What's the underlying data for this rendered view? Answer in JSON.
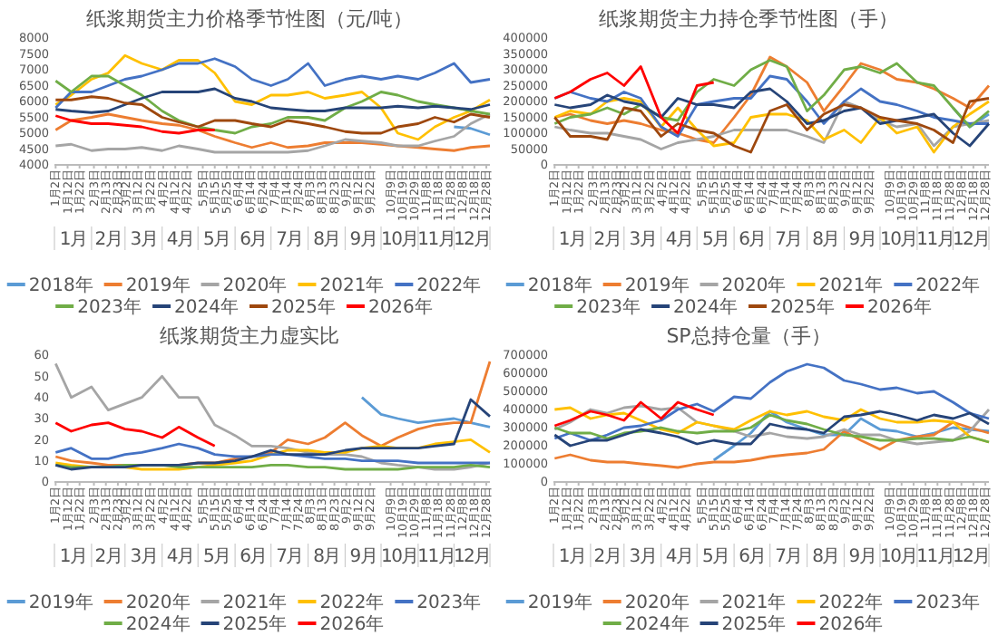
{
  "chart_data": [
    {
      "type": "line",
      "title": "纸浆期货主力价格季节性图（元/吨）",
      "x": [
        "--01-02",
        "--01-15",
        "--02-01",
        "--02-15",
        "--03-01",
        "--03-15",
        "--04-01",
        "--04-15",
        "--05-01",
        "--05-15",
        "--06-01",
        "--06-15",
        "--07-01",
        "--07-15",
        "--08-01",
        "--08-15",
        "--09-01",
        "--09-15",
        "--10-01",
        "--10-15",
        "--11-01",
        "--11-15",
        "--12-01",
        "--12-15",
        "--12-31"
      ],
      "xlim": [
        "--01-01",
        "--12-31"
      ],
      "xticks": [
        {
          "value": "--01-02",
          "label": "1月2日"
        },
        {
          "value": "--01-12",
          "label": "1月12日"
        },
        {
          "value": "--01-22",
          "label": "1月22日"
        },
        {
          "value": "--02-03",
          "label": "2月3日"
        },
        {
          "value": "--02-13",
          "label": "2月13日"
        },
        {
          "value": "--02-23",
          "label": "2月23日"
        },
        {
          "value": "--03-02",
          "label": "3月2日"
        },
        {
          "value": "--03-12",
          "label": "3月12日"
        },
        {
          "value": "--03-22",
          "label": "3月22日"
        },
        {
          "value": "--04-02",
          "label": "4月2日"
        },
        {
          "value": "--04-12",
          "label": "4月12日"
        },
        {
          "value": "--04-22",
          "label": "4月22日"
        },
        {
          "value": "--05-05",
          "label": "5月5日"
        },
        {
          "value": "--05-15",
          "label": "5月15日"
        },
        {
          "value": "--05-25",
          "label": "5月25日"
        },
        {
          "value": "--06-04",
          "label": "6月4日"
        },
        {
          "value": "--06-14",
          "label": "6月14日"
        },
        {
          "value": "--06-24",
          "label": "6月24日"
        },
        {
          "value": "--07-04",
          "label": "7月4日"
        },
        {
          "value": "--07-14",
          "label": "7月14日"
        },
        {
          "value": "--07-24",
          "label": "7月24日"
        },
        {
          "value": "--08-03",
          "label": "8月3日"
        },
        {
          "value": "--08-13",
          "label": "8月13日"
        },
        {
          "value": "--08-23",
          "label": "8月23日"
        },
        {
          "value": "--09-02",
          "label": "9月2日"
        },
        {
          "value": "--09-12",
          "label": "9月12日"
        },
        {
          "value": "--09-22",
          "label": "9月22日"
        },
        {
          "value": "--10-09",
          "label": "10月9日"
        },
        {
          "value": "--10-19",
          "label": "10月19日"
        },
        {
          "value": "--10-29",
          "label": "10月29日"
        },
        {
          "value": "--11-08",
          "label": "11月8日"
        },
        {
          "value": "--11-18",
          "label": "11月18日"
        },
        {
          "value": "--11-28",
          "label": "11月28日"
        },
        {
          "value": "--12-08",
          "label": "12月8日"
        },
        {
          "value": "--12-18",
          "label": "12月18日"
        },
        {
          "value": "--12-28",
          "label": "12月28日"
        }
      ],
      "annotations": [
        "1月",
        "2月",
        "3月",
        "4月",
        "5月",
        "6月",
        "7月",
        "8月",
        "9月",
        "10月",
        "11月",
        "12月"
      ],
      "ylim": [
        4000,
        8000
      ],
      "yticks": [
        4000,
        4500,
        5000,
        5500,
        6000,
        6500,
        7000,
        7500,
        8000
      ],
      "grid": false,
      "legend": "bottom",
      "series": [
        {
          "name": "2018年",
          "color": "#5b9bd5",
          "values": [
            null,
            null,
            null,
            null,
            null,
            null,
            null,
            null,
            null,
            null,
            null,
            null,
            null,
            null,
            null,
            null,
            null,
            null,
            null,
            null,
            null,
            null,
            5200,
            5150,
            4950
          ]
        },
        {
          "name": "2019年",
          "color": "#ed7d31",
          "values": [
            5100,
            5400,
            5500,
            5600,
            5500,
            5400,
            5300,
            5250,
            5100,
            4900,
            4700,
            4550,
            4700,
            4550,
            4600,
            4700,
            4700,
            4700,
            4650,
            4600,
            4550,
            4500,
            4450,
            4550,
            4600
          ]
        },
        {
          "name": "2020年",
          "color": "#a5a5a5",
          "values": [
            4600,
            4650,
            4450,
            4500,
            4500,
            4550,
            4450,
            4600,
            4500,
            4400,
            4400,
            4400,
            4400,
            4400,
            4450,
            4600,
            4800,
            4750,
            4700,
            4600,
            4600,
            4750,
            4900,
            5300,
            5600
          ]
        },
        {
          "name": "2021年",
          "color": "#ffc000",
          "values": [
            5900,
            6200,
            6700,
            6900,
            7450,
            7200,
            7000,
            7300,
            7300,
            6900,
            6000,
            5900,
            6200,
            6200,
            6300,
            6100,
            6200,
            6300,
            5800,
            5000,
            4800,
            5200,
            5500,
            5700,
            6050
          ]
        },
        {
          "name": "2022年",
          "color": "#4472c4",
          "values": [
            5800,
            6300,
            6300,
            6500,
            6700,
            6800,
            7000,
            7200,
            7200,
            7350,
            7100,
            6700,
            6500,
            6700,
            7200,
            6500,
            6700,
            6800,
            6700,
            6800,
            6700,
            6900,
            7200,
            6600,
            6700
          ]
        },
        {
          "name": "2023年",
          "color": "#70ad47",
          "values": [
            6650,
            6300,
            6800,
            6800,
            6500,
            6200,
            5700,
            5400,
            5200,
            5100,
            5000,
            5200,
            5300,
            5500,
            5500,
            5400,
            5800,
            6000,
            6300,
            6200,
            6000,
            5900,
            5800,
            5700,
            5600
          ]
        },
        {
          "name": "2024年",
          "color": "#264478",
          "values": [
            5750,
            5700,
            5650,
            5700,
            5900,
            6100,
            6300,
            6300,
            6300,
            6400,
            6100,
            6000,
            5800,
            5750,
            5700,
            5700,
            5800,
            5800,
            5800,
            5850,
            5800,
            5850,
            5800,
            5750,
            5900
          ]
        },
        {
          "name": "2025年",
          "color": "#9e480e",
          "values": [
            6050,
            6050,
            6150,
            6100,
            5950,
            5900,
            5500,
            5350,
            5200,
            5400,
            5400,
            5300,
            5200,
            5400,
            5300,
            5200,
            5050,
            5000,
            5000,
            5200,
            5300,
            5500,
            5350,
            5600,
            5500
          ]
        },
        {
          "name": "2026年",
          "color": "#ff0000",
          "values": [
            5550,
            5400,
            5300,
            5300,
            5250,
            5200,
            5050,
            5000,
            5100,
            5100,
            null,
            null,
            null,
            null,
            null,
            null,
            null,
            null,
            null,
            null,
            null,
            null,
            null,
            null,
            null
          ]
        }
      ]
    },
    {
      "type": "line",
      "title": "纸浆期货主力持仓季节性图（手）",
      "x": [
        "--01-02",
        "--01-15",
        "--02-01",
        "--02-15",
        "--03-01",
        "--03-15",
        "--04-01",
        "--04-15",
        "--05-01",
        "--05-15",
        "--06-01",
        "--06-15",
        "--07-01",
        "--07-15",
        "--08-01",
        "--08-15",
        "--09-01",
        "--09-15",
        "--10-01",
        "--10-15",
        "--11-01",
        "--11-15",
        "--12-01",
        "--12-15",
        "--12-31"
      ],
      "xlim": [
        "--01-01",
        "--12-31"
      ],
      "xticks": [
        {
          "value": "--01-02",
          "label": "1月2日"
        },
        {
          "value": "--01-12",
          "label": "1月12日"
        },
        {
          "value": "--01-22",
          "label": "1月22日"
        },
        {
          "value": "--02-03",
          "label": "2月3日"
        },
        {
          "value": "--02-13",
          "label": "2月13日"
        },
        {
          "value": "--02-23",
          "label": "2月23日"
        },
        {
          "value": "--03-02",
          "label": "3月2日"
        },
        {
          "value": "--03-12",
          "label": "3月12日"
        },
        {
          "value": "--03-22",
          "label": "3月22日"
        },
        {
          "value": "--04-02",
          "label": "4月2日"
        },
        {
          "value": "--04-12",
          "label": "4月12日"
        },
        {
          "value": "--04-22",
          "label": "4月22日"
        },
        {
          "value": "--05-05",
          "label": "5月5日"
        },
        {
          "value": "--05-15",
          "label": "5月15日"
        },
        {
          "value": "--05-25",
          "label": "5月25日"
        },
        {
          "value": "--06-04",
          "label": "6月4日"
        },
        {
          "value": "--06-14",
          "label": "6月14日"
        },
        {
          "value": "--06-24",
          "label": "6月24日"
        },
        {
          "value": "--07-04",
          "label": "7月4日"
        },
        {
          "value": "--07-14",
          "label": "7月14日"
        },
        {
          "value": "--07-24",
          "label": "7月24日"
        },
        {
          "value": "--08-03",
          "label": "8月3日"
        },
        {
          "value": "--08-13",
          "label": "8月13日"
        },
        {
          "value": "--08-23",
          "label": "8月23日"
        },
        {
          "value": "--09-02",
          "label": "9月2日"
        },
        {
          "value": "--09-12",
          "label": "9月12日"
        },
        {
          "value": "--09-22",
          "label": "9月22日"
        },
        {
          "value": "--10-09",
          "label": "10月9日"
        },
        {
          "value": "--10-19",
          "label": "10月19日"
        },
        {
          "value": "--10-29",
          "label": "10月29日"
        },
        {
          "value": "--11-08",
          "label": "11月8日"
        },
        {
          "value": "--11-18",
          "label": "11月18日"
        },
        {
          "value": "--11-28",
          "label": "11月28日"
        },
        {
          "value": "--12-08",
          "label": "12月8日"
        },
        {
          "value": "--12-18",
          "label": "12月18日"
        },
        {
          "value": "--12-28",
          "label": "12月28日"
        }
      ],
      "annotations": [
        "1月",
        "2月",
        "3月",
        "4月",
        "5月",
        "6月",
        "7月",
        "8月",
        "9月",
        "10月",
        "11月",
        "12月"
      ],
      "ylim": [
        0,
        400000
      ],
      "yticks": [
        0,
        50000,
        100000,
        150000,
        200000,
        250000,
        300000,
        350000,
        400000
      ],
      "grid": false,
      "legend": "bottom",
      "series": [
        {
          "name": "2018年",
          "color": "#5b9bd5",
          "values": [
            null,
            null,
            null,
            null,
            null,
            null,
            null,
            null,
            null,
            null,
            null,
            null,
            null,
            null,
            null,
            null,
            null,
            null,
            null,
            null,
            null,
            null,
            180000,
            120000,
            160000
          ]
        },
        {
          "name": "2019年",
          "color": "#ed7d31",
          "values": [
            150000,
            160000,
            140000,
            130000,
            140000,
            130000,
            110000,
            100000,
            80000,
            70000,
            150000,
            220000,
            340000,
            310000,
            260000,
            170000,
            250000,
            320000,
            300000,
            270000,
            260000,
            240000,
            210000,
            180000,
            250000
          ]
        },
        {
          "name": "2020年",
          "color": "#a5a5a5",
          "values": [
            120000,
            110000,
            100000,
            100000,
            90000,
            80000,
            50000,
            70000,
            80000,
            90000,
            110000,
            110000,
            110000,
            110000,
            90000,
            70000,
            200000,
            180000,
            140000,
            120000,
            130000,
            60000,
            120000,
            130000,
            140000
          ]
        },
        {
          "name": "2021年",
          "color": "#ffc000",
          "values": [
            150000,
            170000,
            160000,
            200000,
            210000,
            200000,
            120000,
            180000,
            110000,
            60000,
            70000,
            150000,
            160000,
            160000,
            140000,
            80000,
            110000,
            70000,
            150000,
            100000,
            120000,
            40000,
            120000,
            160000,
            200000
          ]
        },
        {
          "name": "2022年",
          "color": "#4472c4",
          "values": [
            210000,
            230000,
            210000,
            200000,
            230000,
            210000,
            120000,
            90000,
            190000,
            200000,
            210000,
            210000,
            280000,
            270000,
            200000,
            130000,
            200000,
            240000,
            200000,
            190000,
            170000,
            150000,
            140000,
            130000,
            130000
          ]
        },
        {
          "name": "2023年",
          "color": "#70ad47",
          "values": [
            130000,
            150000,
            160000,
            180000,
            160000,
            190000,
            150000,
            140000,
            230000,
            270000,
            250000,
            300000,
            330000,
            310000,
            170000,
            220000,
            300000,
            310000,
            290000,
            320000,
            260000,
            250000,
            180000,
            120000,
            170000
          ]
        },
        {
          "name": "2024年",
          "color": "#264478",
          "values": [
            190000,
            180000,
            190000,
            220000,
            200000,
            190000,
            150000,
            210000,
            190000,
            190000,
            180000,
            230000,
            240000,
            200000,
            130000,
            140000,
            170000,
            180000,
            130000,
            140000,
            150000,
            160000,
            100000,
            60000,
            130000
          ]
        },
        {
          "name": "2025年",
          "color": "#9e480e",
          "values": [
            150000,
            90000,
            90000,
            80000,
            180000,
            170000,
            90000,
            130000,
            110000,
            100000,
            60000,
            40000,
            170000,
            190000,
            110000,
            160000,
            190000,
            180000,
            150000,
            140000,
            130000,
            110000,
            70000,
            200000,
            210000
          ]
        },
        {
          "name": "2026年",
          "color": "#ff0000",
          "values": [
            210000,
            230000,
            270000,
            290000,
            250000,
            310000,
            150000,
            100000,
            250000,
            260000,
            null,
            null,
            null,
            null,
            null,
            null,
            null,
            null,
            null,
            null,
            null,
            null,
            null,
            null,
            null
          ]
        }
      ]
    },
    {
      "type": "line",
      "title": "纸浆期货主力虚实比",
      "x": [
        "--01-02",
        "--01-15",
        "--02-01",
        "--02-15",
        "--03-01",
        "--03-15",
        "--04-01",
        "--04-15",
        "--05-01",
        "--05-15",
        "--06-01",
        "--06-15",
        "--07-01",
        "--07-15",
        "--08-01",
        "--08-15",
        "--09-01",
        "--09-15",
        "--10-01",
        "--10-15",
        "--11-01",
        "--11-15",
        "--12-01",
        "--12-15",
        "--12-31"
      ],
      "xlim": [
        "--01-01",
        "--12-31"
      ],
      "xticks": [
        {
          "value": "--01-02",
          "label": "1月2日"
        },
        {
          "value": "--01-12",
          "label": "1月12日"
        },
        {
          "value": "--01-22",
          "label": "1月22日"
        },
        {
          "value": "--02-03",
          "label": "2月3日"
        },
        {
          "value": "--02-13",
          "label": "2月13日"
        },
        {
          "value": "--02-23",
          "label": "2月23日"
        },
        {
          "value": "--03-02",
          "label": "3月2日"
        },
        {
          "value": "--03-12",
          "label": "3月12日"
        },
        {
          "value": "--03-22",
          "label": "3月22日"
        },
        {
          "value": "--04-02",
          "label": "4月2日"
        },
        {
          "value": "--04-12",
          "label": "4月12日"
        },
        {
          "value": "--04-22",
          "label": "4月22日"
        },
        {
          "value": "--05-05",
          "label": "5月5日"
        },
        {
          "value": "--05-15",
          "label": "5月15日"
        },
        {
          "value": "--05-25",
          "label": "5月25日"
        },
        {
          "value": "--06-04",
          "label": "6月4日"
        },
        {
          "value": "--06-14",
          "label": "6月14日"
        },
        {
          "value": "--06-24",
          "label": "6月24日"
        },
        {
          "value": "--07-04",
          "label": "7月4日"
        },
        {
          "value": "--07-14",
          "label": "7月14日"
        },
        {
          "value": "--07-24",
          "label": "7月24日"
        },
        {
          "value": "--08-03",
          "label": "8月3日"
        },
        {
          "value": "--08-13",
          "label": "8月13日"
        },
        {
          "value": "--08-23",
          "label": "8月23日"
        },
        {
          "value": "--09-02",
          "label": "9月2日"
        },
        {
          "value": "--09-12",
          "label": "9月12日"
        },
        {
          "value": "--09-22",
          "label": "9月22日"
        },
        {
          "value": "--10-09",
          "label": "10月9日"
        },
        {
          "value": "--10-19",
          "label": "10月19日"
        },
        {
          "value": "--10-29",
          "label": "10月29日"
        },
        {
          "value": "--11-08",
          "label": "11月8日"
        },
        {
          "value": "--11-18",
          "label": "11月18日"
        },
        {
          "value": "--11-28",
          "label": "11月28日"
        },
        {
          "value": "--12-08",
          "label": "12月8日"
        },
        {
          "value": "--12-18",
          "label": "12月18日"
        },
        {
          "value": "--12-28",
          "label": "12月28日"
        }
      ],
      "annotations": [
        "1月",
        "2月",
        "3月",
        "4月",
        "5月",
        "6月",
        "7月",
        "8月",
        "9月",
        "10月",
        "11月",
        "12月"
      ],
      "ylim": [
        0,
        60
      ],
      "yticks": [
        0,
        10,
        20,
        30,
        40,
        50,
        60
      ],
      "grid": false,
      "legend": "bottom",
      "series": [
        {
          "name": "2019年",
          "color": "#5b9bd5",
          "values": [
            null,
            null,
            null,
            null,
            null,
            null,
            null,
            null,
            null,
            null,
            null,
            null,
            null,
            null,
            null,
            null,
            null,
            40,
            32,
            30,
            28,
            29,
            30,
            28,
            26
          ]
        },
        {
          "name": "2020年",
          "color": "#ed7d31",
          "values": [
            12,
            10,
            9,
            8,
            8,
            8,
            8,
            8,
            9,
            9,
            11,
            12,
            14,
            20,
            18,
            21,
            28,
            22,
            17,
            21,
            25,
            27,
            28,
            28,
            57
          ]
        },
        {
          "name": "2021年",
          "color": "#a5a5a5",
          "values": [
            56,
            40,
            45,
            34,
            37,
            40,
            50,
            40,
            40,
            27,
            22,
            17,
            17,
            16,
            14,
            13,
            13,
            12,
            9,
            8,
            7,
            6,
            6,
            7,
            9
          ]
        },
        {
          "name": "2022年",
          "color": "#ffc000",
          "values": [
            9,
            8,
            7,
            7,
            7,
            6,
            6,
            6,
            7,
            8,
            9,
            10,
            13,
            15,
            15,
            14,
            14,
            16,
            17,
            16,
            16,
            18,
            19,
            20,
            14
          ]
        },
        {
          "name": "2023年",
          "color": "#4472c4",
          "values": [
            14,
            16,
            11,
            11,
            13,
            14,
            16,
            18,
            16,
            13,
            12,
            12,
            13,
            13,
            12,
            11,
            11,
            10,
            10,
            10,
            9,
            9,
            9,
            9,
            9
          ]
        },
        {
          "name": "2024年",
          "color": "#70ad47",
          "values": [
            8,
            7,
            7,
            7,
            8,
            8,
            8,
            7,
            7,
            7,
            7,
            7,
            8,
            8,
            7,
            7,
            6,
            6,
            6,
            6,
            7,
            7,
            7,
            8,
            7
          ]
        },
        {
          "name": "2025年",
          "color": "#264478",
          "values": [
            8,
            6,
            7,
            7,
            7,
            8,
            8,
            8,
            9,
            9,
            10,
            12,
            15,
            13,
            13,
            13,
            15,
            16,
            16,
            16,
            16,
            17,
            18,
            39,
            31
          ]
        },
        {
          "name": "2026年",
          "color": "#ff0000",
          "values": [
            28,
            24,
            27,
            28,
            25,
            24,
            21,
            26,
            21,
            17,
            null,
            null,
            null,
            null,
            null,
            null,
            null,
            null,
            null,
            null,
            null,
            null,
            null,
            null,
            null
          ]
        }
      ]
    },
    {
      "type": "line",
      "title": "SP总持仓量（手）",
      "x": [
        "--01-02",
        "--01-15",
        "--02-01",
        "--02-15",
        "--03-01",
        "--03-15",
        "--04-01",
        "--04-15",
        "--05-01",
        "--05-15",
        "--06-01",
        "--06-15",
        "--07-01",
        "--07-15",
        "--08-01",
        "--08-15",
        "--09-01",
        "--09-15",
        "--10-01",
        "--10-15",
        "--11-01",
        "--11-15",
        "--12-01",
        "--12-15",
        "--12-31"
      ],
      "xlim": [
        "--01-01",
        "--12-31"
      ],
      "xticks": [
        {
          "value": "--01-02",
          "label": "1月2日"
        },
        {
          "value": "--01-12",
          "label": "1月12日"
        },
        {
          "value": "--01-22",
          "label": "1月22日"
        },
        {
          "value": "--02-03",
          "label": "2月3日"
        },
        {
          "value": "--02-13",
          "label": "2月13日"
        },
        {
          "value": "--02-23",
          "label": "2月23日"
        },
        {
          "value": "--03-02",
          "label": "3月2日"
        },
        {
          "value": "--03-12",
          "label": "3月12日"
        },
        {
          "value": "--03-22",
          "label": "3月22日"
        },
        {
          "value": "--04-02",
          "label": "4月2日"
        },
        {
          "value": "--04-12",
          "label": "4月12日"
        },
        {
          "value": "--04-22",
          "label": "4月22日"
        },
        {
          "value": "--05-05",
          "label": "5月5日"
        },
        {
          "value": "--05-15",
          "label": "5月15日"
        },
        {
          "value": "--05-25",
          "label": "5月25日"
        },
        {
          "value": "--06-04",
          "label": "6月4日"
        },
        {
          "value": "--06-14",
          "label": "6月14日"
        },
        {
          "value": "--06-24",
          "label": "6月24日"
        },
        {
          "value": "--07-04",
          "label": "7月4日"
        },
        {
          "value": "--07-14",
          "label": "7月14日"
        },
        {
          "value": "--07-24",
          "label": "7月24日"
        },
        {
          "value": "--08-03",
          "label": "8月3日"
        },
        {
          "value": "--08-13",
          "label": "8月13日"
        },
        {
          "value": "--08-23",
          "label": "8月23日"
        },
        {
          "value": "--09-02",
          "label": "9月2日"
        },
        {
          "value": "--09-12",
          "label": "9月12日"
        },
        {
          "value": "--09-22",
          "label": "9月22日"
        },
        {
          "value": "--10-09",
          "label": "10月9日"
        },
        {
          "value": "--10-19",
          "label": "10月19日"
        },
        {
          "value": "--10-29",
          "label": "10月29日"
        },
        {
          "value": "--11-08",
          "label": "11月8日"
        },
        {
          "value": "--11-18",
          "label": "11月18日"
        },
        {
          "value": "--11-28",
          "label": "11月28日"
        },
        {
          "value": "--12-08",
          "label": "12月8日"
        },
        {
          "value": "--12-18",
          "label": "12月18日"
        },
        {
          "value": "--12-28",
          "label": "12月28日"
        }
      ],
      "annotations": [
        "1月",
        "2月",
        "3月",
        "4月",
        "5月",
        "6月",
        "7月",
        "8月",
        "9月",
        "10月",
        "11月",
        "12月"
      ],
      "ylim": [
        0,
        700000
      ],
      "yticks": [
        0,
        100000,
        200000,
        300000,
        400000,
        500000,
        600000,
        700000
      ],
      "grid": false,
      "legend": "bottom",
      "series": [
        {
          "name": "2019年",
          "color": "#5b9bd5",
          "values": [
            null,
            null,
            null,
            null,
            null,
            null,
            null,
            null,
            null,
            120000,
            200000,
            270000,
            390000,
            330000,
            290000,
            260000,
            260000,
            350000,
            290000,
            280000,
            250000,
            270000,
            300000,
            290000,
            280000
          ]
        },
        {
          "name": "2020年",
          "color": "#ed7d31",
          "values": [
            130000,
            150000,
            120000,
            110000,
            110000,
            100000,
            90000,
            80000,
            100000,
            110000,
            110000,
            120000,
            140000,
            150000,
            160000,
            180000,
            280000,
            230000,
            180000,
            230000,
            250000,
            260000,
            330000,
            300000,
            270000
          ]
        },
        {
          "name": "2021年",
          "color": "#a5a5a5",
          "values": [
            290000,
            330000,
            400000,
            380000,
            410000,
            420000,
            400000,
            410000,
            330000,
            310000,
            280000,
            250000,
            270000,
            250000,
            240000,
            250000,
            290000,
            260000,
            260000,
            230000,
            210000,
            220000,
            230000,
            280000,
            400000
          ]
        },
        {
          "name": "2022年",
          "color": "#ffc000",
          "values": [
            400000,
            410000,
            350000,
            370000,
            380000,
            340000,
            290000,
            270000,
            330000,
            310000,
            290000,
            340000,
            390000,
            370000,
            390000,
            360000,
            340000,
            400000,
            350000,
            330000,
            330000,
            340000,
            330000,
            250000,
            220000
          ]
        },
        {
          "name": "2023年",
          "color": "#4472c4",
          "values": [
            240000,
            270000,
            230000,
            260000,
            300000,
            310000,
            340000,
            400000,
            430000,
            390000,
            470000,
            460000,
            550000,
            610000,
            650000,
            630000,
            560000,
            540000,
            510000,
            520000,
            490000,
            500000,
            440000,
            380000,
            350000
          ]
        },
        {
          "name": "2024年",
          "color": "#70ad47",
          "values": [
            300000,
            270000,
            270000,
            240000,
            270000,
            280000,
            300000,
            280000,
            270000,
            280000,
            280000,
            300000,
            370000,
            340000,
            320000,
            290000,
            260000,
            250000,
            230000,
            230000,
            240000,
            240000,
            230000,
            250000,
            220000
          ]
        },
        {
          "name": "2025年",
          "color": "#264478",
          "values": [
            260000,
            200000,
            230000,
            230000,
            260000,
            290000,
            270000,
            250000,
            210000,
            230000,
            210000,
            210000,
            320000,
            300000,
            290000,
            270000,
            360000,
            370000,
            390000,
            370000,
            340000,
            370000,
            350000,
            380000,
            320000
          ]
        },
        {
          "name": "2026年",
          "color": "#ff0000",
          "values": [
            310000,
            340000,
            390000,
            370000,
            340000,
            440000,
            350000,
            440000,
            400000,
            370000,
            null,
            null,
            null,
            null,
            null,
            null,
            null,
            null,
            null,
            null,
            null,
            null,
            null,
            null,
            null
          ]
        }
      ]
    }
  ]
}
